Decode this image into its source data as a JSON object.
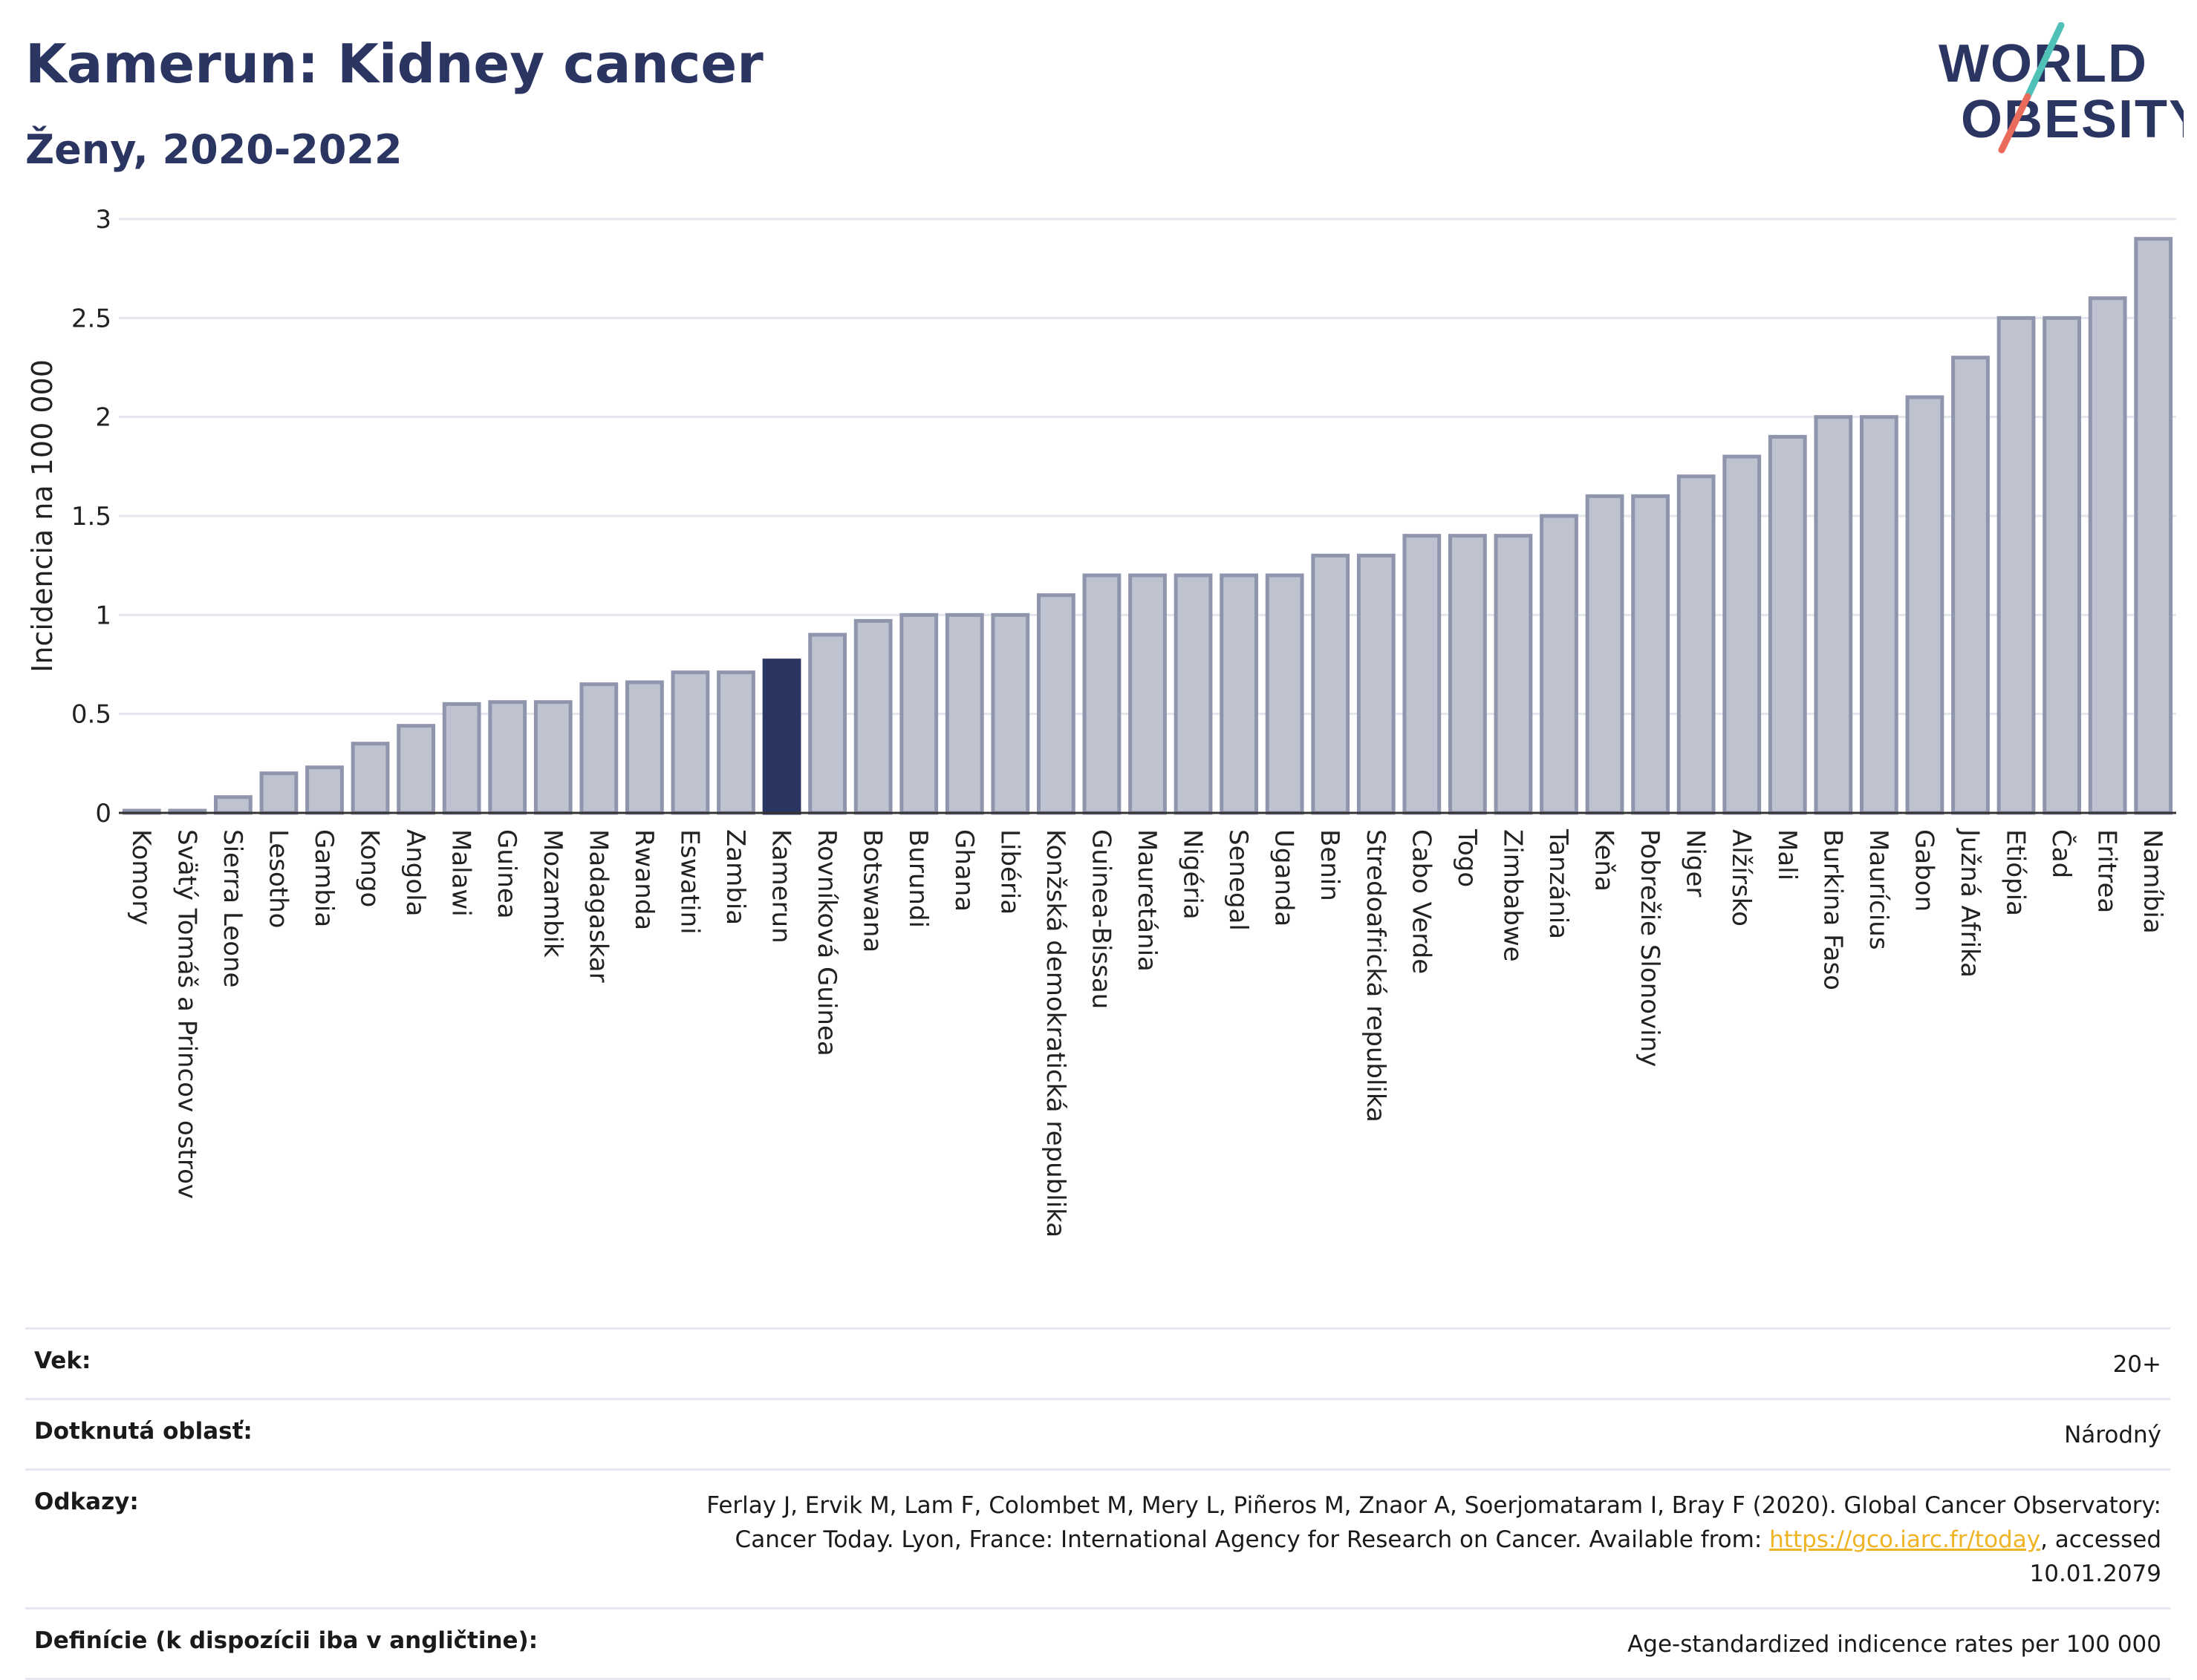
{
  "header": {
    "title": "Kamerun: Kidney cancer",
    "subtitle": "Ženy, 2020-2022",
    "logo_line1": "WORLD",
    "logo_line2": "OBESITY"
  },
  "colors": {
    "bar_default": "#bfc3d0",
    "bar_border": "#8f95ad",
    "bar_highlight": "#2b3561",
    "title": "#2b3561",
    "logo_teal": "#4fc1b7",
    "logo_coral": "#e96b5b"
  },
  "chart_data": {
    "type": "bar",
    "title": "Kamerun: Kidney cancer",
    "subtitle": "Ženy, 2020-2022",
    "xlabel": "",
    "ylabel": "Incidencia na 100 000",
    "ylim": [
      0,
      3
    ],
    "yticks": [
      0,
      0.5,
      1,
      1.5,
      2,
      2.5,
      3
    ],
    "ytick_labels": [
      "0",
      "0.5",
      "1",
      "1.5",
      "2",
      "2.5",
      "3"
    ],
    "grid": true,
    "highlight": "Kamerun",
    "categories": [
      "Komory",
      "Svätý Tomáš a Princov ostrov",
      "Sierra Leone",
      "Lesotho",
      "Gambia",
      "Kongo",
      "Angola",
      "Malawi",
      "Guinea",
      "Mozambik",
      "Madagaskar",
      "Rwanda",
      "Eswatini",
      "Zambia",
      "Kamerun",
      "Rovníková Guinea",
      "Botswana",
      "Burundi",
      "Ghana",
      "Libéria",
      "Konžská demokratická republika",
      "Guinea-Bissau",
      "Mauretánia",
      "Nigéria",
      "Senegal",
      "Uganda",
      "Benin",
      "Stredoafrická republika",
      "Cabo Verde",
      "Togo",
      "Zimbabwe",
      "Tanzánia",
      "Keňa",
      "Pobrežie Slonoviny",
      "Niger",
      "Alžírsko",
      "Mali",
      "Burkina Faso",
      "Maurícius",
      "Gabon",
      "Južná Afrika",
      "Etiópia",
      "Čad",
      "Eritrea",
      "Namíbia"
    ],
    "values": [
      0.01,
      0.01,
      0.08,
      0.2,
      0.23,
      0.35,
      0.44,
      0.55,
      0.56,
      0.56,
      0.65,
      0.66,
      0.71,
      0.71,
      0.77,
      0.9,
      0.97,
      1.0,
      1.0,
      1.0,
      1.1,
      1.2,
      1.2,
      1.2,
      1.2,
      1.2,
      1.3,
      1.3,
      1.4,
      1.4,
      1.4,
      1.5,
      1.6,
      1.6,
      1.7,
      1.8,
      1.9,
      2.0,
      2.0,
      2.1,
      2.3,
      2.5,
      2.5,
      2.6,
      2.9
    ]
  },
  "info_table": [
    {
      "key": "Vek:",
      "value": "20+"
    },
    {
      "key": "Dotknutá oblasť:",
      "value": "Národný"
    },
    {
      "key": "Odkazy:",
      "value": "Ferlay J, Ervik M, Lam F, Colombet M, Mery L, Piñeros M, Znaor A, Soerjomataram I, Bray F (2020). Global Cancer Observatory: Cancer Today. Lyon, France: International Agency for Research on Cancer. Available from: ",
      "link": "https://gco.iarc.fr/today",
      "suffix": ", accessed 10.01.2079"
    },
    {
      "key": "Definície (k dispozícii iba v angličtine):",
      "value": "Age-standardized indicence rates per 100 000"
    }
  ]
}
